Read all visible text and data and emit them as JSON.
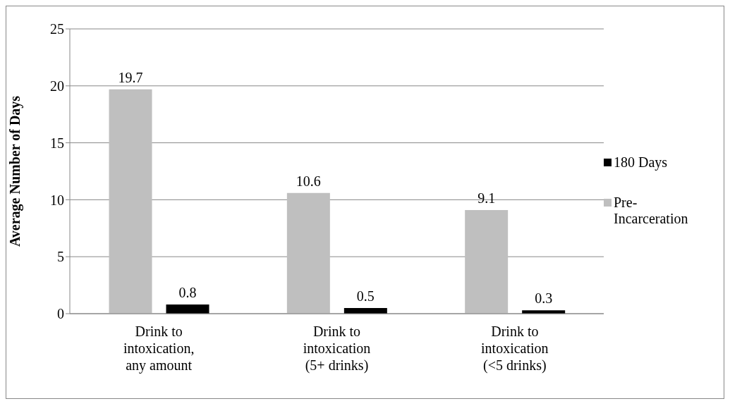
{
  "chart_data": {
    "type": "bar",
    "ylabel": "Average Number of Days",
    "categories": [
      "Drink to intoxication, any amount",
      "Drink to intoxication (5+ drinks)",
      "Drink to intoxication (<5 drinks)"
    ],
    "series": [
      {
        "name": "Pre-Incarceration",
        "color": "#bfbfbf",
        "values": [
          19.7,
          10.6,
          9.1
        ]
      },
      {
        "name": "180 Days",
        "color": "#000000",
        "values": [
          0.8,
          0.5,
          0.3
        ]
      }
    ],
    "ylim": [
      0,
      25
    ],
    "yticks": [
      0,
      5,
      10,
      15,
      20,
      25
    ],
    "grid": "y",
    "legend": "right",
    "data_labels": true
  }
}
